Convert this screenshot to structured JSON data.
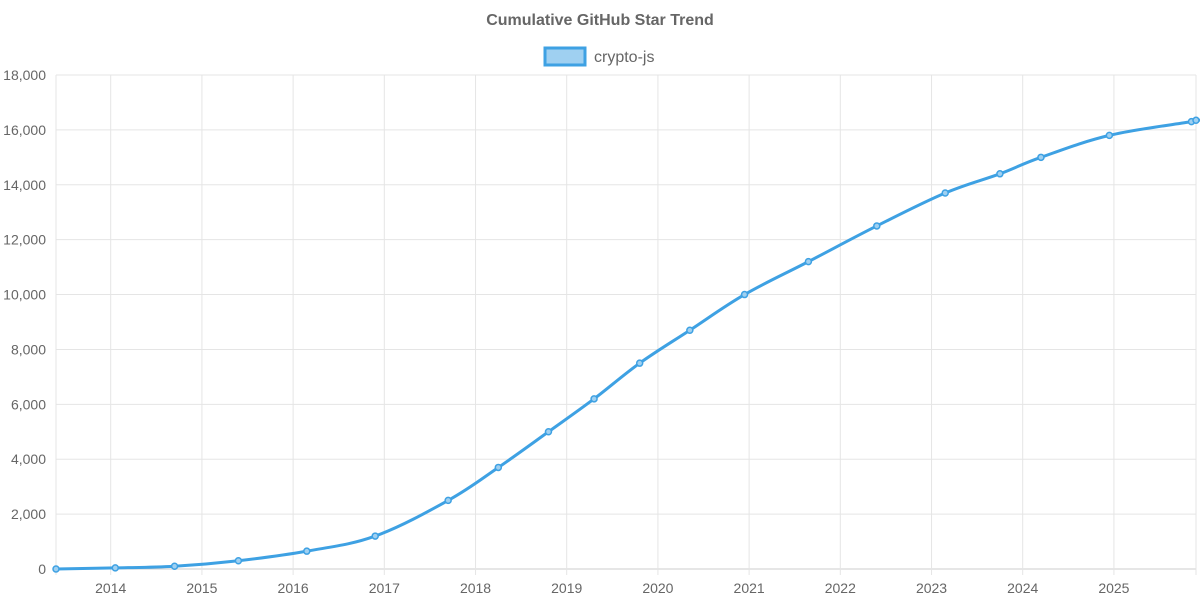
{
  "chart_data": {
    "type": "line",
    "title": "Cumulative GitHub Star Trend",
    "xlabel": "",
    "ylabel": "",
    "x_ticks": [
      "2014",
      "2015",
      "2016",
      "2017",
      "2018",
      "2019",
      "2020",
      "2021",
      "2022",
      "2023",
      "2024",
      "2025"
    ],
    "y_ticks": [
      "0",
      "2,000",
      "4,000",
      "6,000",
      "8,000",
      "10,000",
      "12,000",
      "14,000",
      "16,000",
      "18,000"
    ],
    "ylim": [
      0,
      18000
    ],
    "xlim": [
      2013.4,
      2025.9
    ],
    "grid": true,
    "legend_position": "top-center",
    "series": [
      {
        "name": "crypto-js",
        "color": "#3ea1e3",
        "fill": "#9fd0f1",
        "x": [
          2013.4,
          2014.05,
          2014.7,
          2015.4,
          2016.15,
          2016.9,
          2017.7,
          2018.25,
          2018.8,
          2019.3,
          2019.8,
          2020.35,
          2020.95,
          2021.65,
          2022.4,
          2023.15,
          2023.75,
          2024.2,
          2024.95,
          2025.85,
          2025.9
        ],
        "values": [
          0,
          40,
          100,
          300,
          650,
          1200,
          2500,
          3700,
          5000,
          6200,
          7500,
          8700,
          10000,
          11200,
          12500,
          13700,
          14400,
          15000,
          15800,
          16300,
          16350
        ]
      }
    ]
  }
}
